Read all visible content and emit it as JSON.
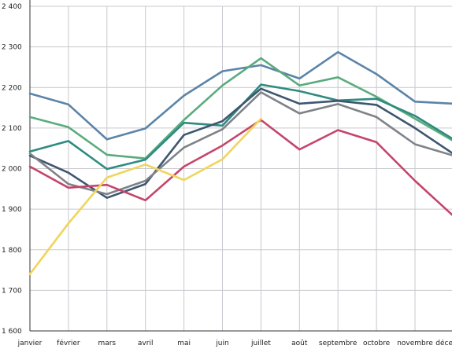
{
  "chart_data": {
    "type": "line",
    "categories": [
      "janvier",
      "février",
      "mars",
      "avril",
      "mai",
      "juin",
      "juillet",
      "août",
      "septembre",
      "octobre",
      "novembre",
      "décembre"
    ],
    "y_ticks": [
      "1 600",
      "1 700",
      "1 800",
      "1 900",
      "2 000",
      "2 100",
      "2 200",
      "2 300",
      "2 400"
    ],
    "ylim": [
      1600,
      2400
    ],
    "grid": true,
    "series": [
      {
        "color": "#5b84a8",
        "values": [
          2185,
          2158,
          2072,
          2099,
          2180,
          2240,
          2255,
          2222,
          2287,
          2233,
          2165,
          2160
        ]
      },
      {
        "color": "#5aab7d",
        "values": [
          2127,
          2102,
          2034,
          2025,
          2120,
          2205,
          2272,
          2205,
          2225,
          2177,
          2123,
          2068
        ]
      },
      {
        "color": "#2e8b80",
        "values": [
          2042,
          2068,
          1999,
          2022,
          2113,
          2106,
          2207,
          2191,
          2168,
          2172,
          2130,
          2072
        ]
      },
      {
        "color": "#3e566f",
        "values": [
          2032,
          1990,
          1928,
          1962,
          2083,
          2117,
          2197,
          2160,
          2167,
          2157,
          2100,
          2036
        ]
      },
      {
        "color": "#7f8288",
        "values": [
          2037,
          1962,
          1937,
          1970,
          2052,
          2097,
          2188,
          2136,
          2159,
          2127,
          2060,
          2032
        ]
      },
      {
        "color": "#c4456b",
        "values": [
          2005,
          1953,
          1960,
          1922,
          2005,
          2057,
          2120,
          2047,
          2095,
          2065,
          1970,
          1883
        ]
      },
      {
        "color": "#f0d55c",
        "values": [
          1740,
          1865,
          1978,
          2010,
          1972,
          2023,
          2123,
          null,
          null,
          null,
          null,
          null
        ]
      }
    ]
  }
}
